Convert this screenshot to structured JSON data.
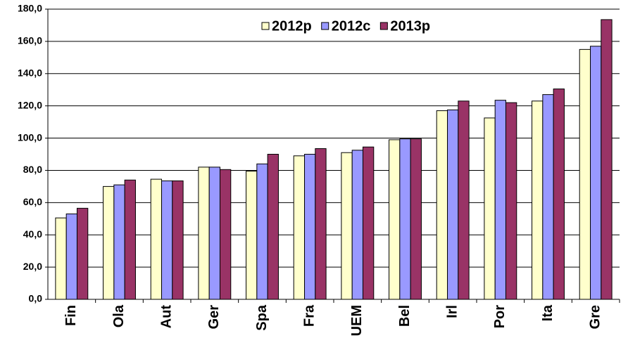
{
  "chart_data": {
    "type": "bar",
    "categories": [
      "Fin",
      "Ola",
      "Aut",
      "Ger",
      "Spa",
      "Fra",
      "UEM",
      "Bel",
      "Irl",
      "Por",
      "Ita",
      "Gre"
    ],
    "series": [
      {
        "name": "2012p",
        "color": "#ffffcc",
        "values": [
          50.5,
          70,
          74.5,
          82,
          79.5,
          89,
          91,
          99,
          117,
          112.5,
          123,
          155
        ]
      },
      {
        "name": "2012c",
        "color": "#9999ff",
        "values": [
          53,
          71,
          73.5,
          82,
          84,
          90,
          92.5,
          99.5,
          117.5,
          123.5,
          127,
          157
        ]
      },
      {
        "name": "2013p",
        "color": "#993366",
        "values": [
          56.5,
          74,
          73.5,
          80.5,
          90,
          93.5,
          94.5,
          99.5,
          123,
          122,
          130.5,
          173.5
        ]
      }
    ],
    "ylim": [
      0,
      180
    ],
    "yticks": [
      {
        "value": 0,
        "label": "0,0"
      },
      {
        "value": 20,
        "label": "20,0"
      },
      {
        "value": 40,
        "label": "40,0"
      },
      {
        "value": 60,
        "label": "60,0"
      },
      {
        "value": 80,
        "label": "80,0"
      },
      {
        "value": 100,
        "label": "100,0"
      },
      {
        "value": 120,
        "label": "120,0"
      },
      {
        "value": 140,
        "label": "140,0"
      },
      {
        "value": 160,
        "label": "160,0"
      },
      {
        "value": 180,
        "label": "180,0"
      }
    ],
    "grid": true
  }
}
